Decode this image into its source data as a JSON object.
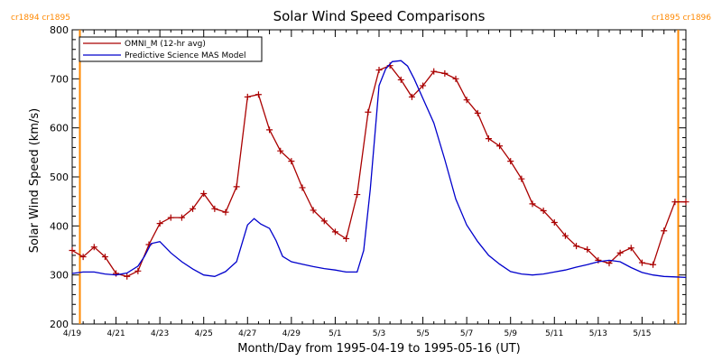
{
  "chart_data": {
    "type": "line",
    "title": "Solar Wind Speed Comparisons",
    "xlabel": "Month/Day from 1995-04-19 to 1995-05-16 (UT)",
    "ylabel": "Solar Wind Speed (km/s)",
    "ylim": [
      200,
      800
    ],
    "xlim_days": [
      0,
      28
    ],
    "grid": false,
    "legend_position": "top-left",
    "y_ticks": [
      200,
      300,
      400,
      500,
      600,
      700,
      800
    ],
    "x_ticks": [
      {
        "day": 0,
        "label": "4/19"
      },
      {
        "day": 2,
        "label": "4/21"
      },
      {
        "day": 4,
        "label": "4/23"
      },
      {
        "day": 6,
        "label": "4/25"
      },
      {
        "day": 8,
        "label": "4/27"
      },
      {
        "day": 10,
        "label": "4/29"
      },
      {
        "day": 12,
        "label": "5/1"
      },
      {
        "day": 14,
        "label": "5/3"
      },
      {
        "day": 16,
        "label": "5/5"
      },
      {
        "day": 18,
        "label": "5/7"
      },
      {
        "day": 20,
        "label": "5/9"
      },
      {
        "day": 22,
        "label": "5/11"
      },
      {
        "day": 24,
        "label": "5/13"
      },
      {
        "day": 26,
        "label": "5/15"
      }
    ],
    "carrington_markers": [
      {
        "day": 0.35,
        "label": "cr1894 cr1895"
      },
      {
        "day": 27.65,
        "label": "cr1895 cr1896"
      }
    ],
    "series": [
      {
        "name": "OMNI_M (12-hr avg)",
        "color": "#aa0000",
        "markers": "plus",
        "x": [
          0,
          0.5,
          1,
          1.5,
          2,
          2.5,
          3,
          3.5,
          4,
          4.5,
          5,
          5.5,
          6,
          6.5,
          7,
          7.5,
          8,
          8.5,
          9,
          9.5,
          10,
          10.5,
          11,
          11.5,
          12,
          12.5,
          13,
          13.5,
          14,
          14.5,
          15,
          15.5,
          16,
          16.5,
          17,
          17.5,
          18,
          18.5,
          19,
          19.5,
          20,
          20.5,
          21,
          21.5,
          22,
          22.5,
          23,
          23.5,
          24,
          24.5,
          25,
          25.5,
          26,
          26.5,
          27,
          27.5,
          28
        ],
        "values": [
          350,
          337,
          357,
          337,
          303,
          297,
          308,
          362,
          405,
          417,
          417,
          435,
          466,
          435,
          428,
          480,
          663,
          668,
          596,
          553,
          532,
          478,
          432,
          410,
          388,
          374,
          464,
          632,
          718,
          727,
          698,
          663,
          686,
          715,
          711,
          700,
          657,
          630,
          578,
          563,
          532,
          496,
          445,
          431,
          407,
          380,
          359,
          352,
          330,
          324,
          345,
          355,
          325,
          321,
          390,
          449,
          449
        ]
      },
      {
        "name": "Predictive Science MAS Model",
        "color": "#0000cc",
        "markers": "none",
        "x": [
          0,
          0.5,
          1,
          1.5,
          2,
          2.5,
          3,
          3.3,
          3.6,
          4,
          4.5,
          5,
          5.5,
          6,
          6.5,
          7,
          7.5,
          8,
          8.3,
          8.6,
          9,
          9.3,
          9.6,
          10,
          10.5,
          11,
          11.5,
          12,
          12.5,
          13,
          13.3,
          13.6,
          14,
          14.3,
          14.6,
          15,
          15.3,
          15.6,
          16,
          16.5,
          17,
          17.5,
          18,
          18.5,
          19,
          19.5,
          20,
          20.5,
          21,
          21.5,
          22,
          22.5,
          23,
          23.5,
          24,
          24.5,
          25,
          25.5,
          26,
          26.5,
          27,
          27.5,
          28
        ],
        "values": [
          303,
          306,
          306,
          302,
          300,
          304,
          318,
          338,
          364,
          368,
          345,
          327,
          312,
          300,
          297,
          307,
          327,
          402,
          415,
          404,
          395,
          370,
          338,
          327,
          322,
          317,
          313,
          310,
          306,
          306,
          350,
          475,
          686,
          720,
          735,
          737,
          726,
          700,
          660,
          610,
          535,
          455,
          402,
          368,
          340,
          322,
          307,
          302,
          300,
          302,
          306,
          310,
          316,
          321,
          327,
          330,
          327,
          315,
          305,
          300,
          297,
          296,
          295
        ]
      }
    ]
  }
}
